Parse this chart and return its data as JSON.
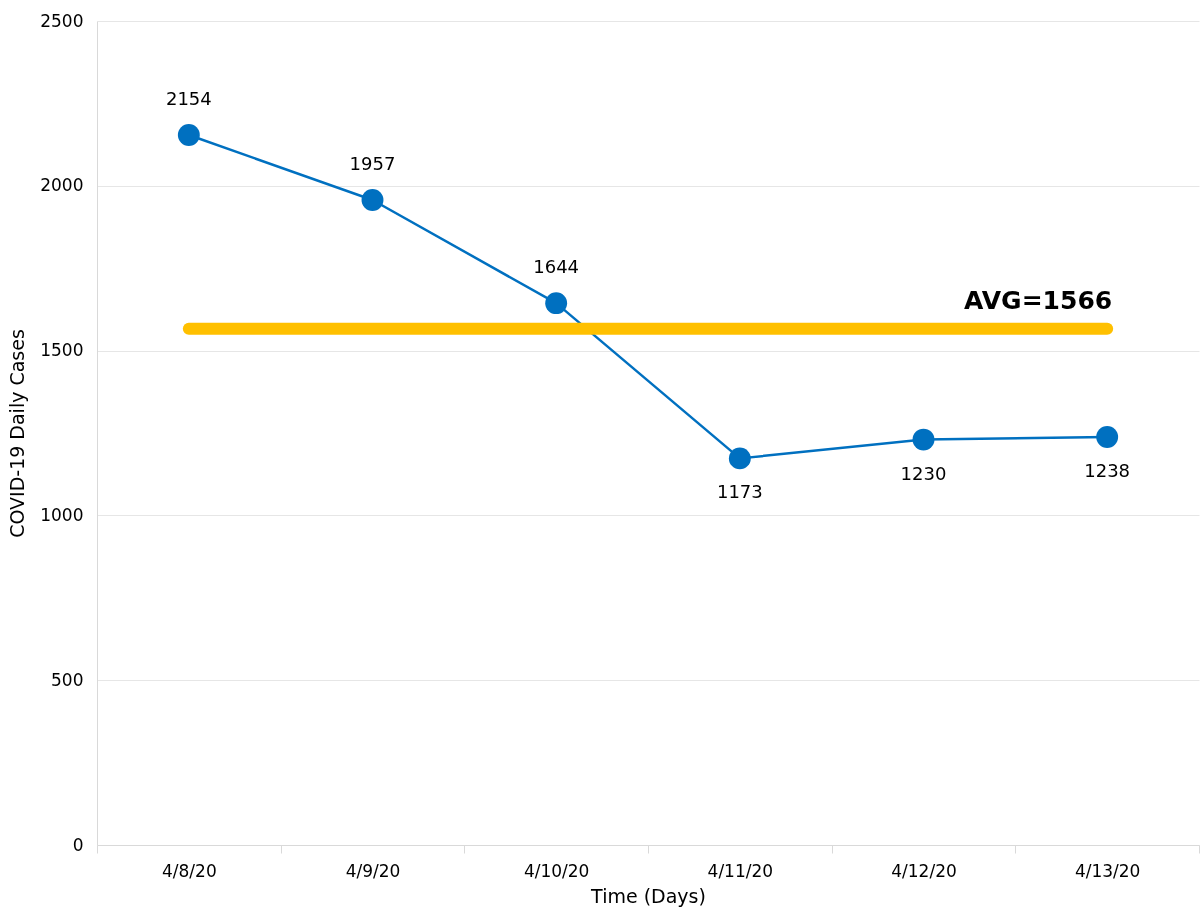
{
  "chart_data": {
    "type": "line",
    "xlabel": "Time (Days)",
    "ylabel": "COVID-19 Daily Cases",
    "categories": [
      "4/8/20",
      "4/9/20",
      "4/10/20",
      "4/11/20",
      "4/12/20",
      "4/13/20"
    ],
    "series": [
      {
        "color": "#0070c0",
        "values": [
          2154,
          1957,
          1644,
          1173,
          1230,
          1238
        ]
      }
    ],
    "ylim": [
      0,
      2500
    ],
    "yticks": [
      0,
      500,
      1000,
      1500,
      2000,
      2500
    ],
    "grid": "y",
    "marker": "circle",
    "line_style": "solid",
    "data_labels": true,
    "ref_lines": [
      {
        "axis": "y",
        "value": 1566,
        "label": "AVG=1566",
        "color": "#ffc000"
      }
    ]
  }
}
